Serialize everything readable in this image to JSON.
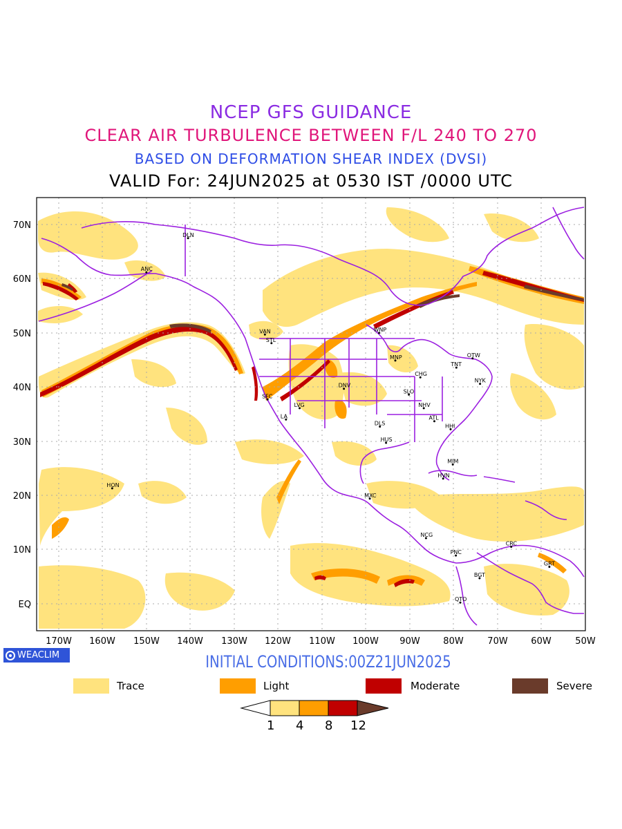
{
  "titles": {
    "line1": "NCEP GFS GUIDANCE",
    "line2": "CLEAR AIR TURBULENCE BETWEEN F/L 240 TO 270",
    "line3": "BASED ON DEFORMATION SHEAR INDEX (DVSI)",
    "line4": "VALID For: 24JUN2025 at 0530 IST /0000 UTC"
  },
  "map": {
    "lat_labels": [
      "70N",
      "60N",
      "50N",
      "40N",
      "30N",
      "20N",
      "10N",
      "EQ"
    ],
    "lon_labels": [
      "170W",
      "160W",
      "150W",
      "140W",
      "130W",
      "120W",
      "110W",
      "100W",
      "90W",
      "80W",
      "70W",
      "60W",
      "50W"
    ],
    "stations": [
      {
        "code": "DLN",
        "lon": -140.5,
        "lat": 67.5
      },
      {
        "code": "ANC",
        "lon": -150.0,
        "lat": 61.2
      },
      {
        "code": "VAN",
        "lon": -123.0,
        "lat": 49.7
      },
      {
        "code": "STL",
        "lon": -121.5,
        "lat": 48.1
      },
      {
        "code": "WNP",
        "lon": -97.0,
        "lat": 50.0
      },
      {
        "code": "OTW",
        "lon": -75.7,
        "lat": 45.3
      },
      {
        "code": "TNT",
        "lon": -79.4,
        "lat": 43.6
      },
      {
        "code": "MNP",
        "lon": -93.3,
        "lat": 44.9
      },
      {
        "code": "CHG",
        "lon": -87.6,
        "lat": 41.8
      },
      {
        "code": "NYK",
        "lon": -74.0,
        "lat": 40.6
      },
      {
        "code": "DNV",
        "lon": -105.0,
        "lat": 39.7
      },
      {
        "code": "SFC",
        "lon": -122.4,
        "lat": 37.7
      },
      {
        "code": "SLO",
        "lon": -90.2,
        "lat": 38.6
      },
      {
        "code": "LVG",
        "lon": -115.1,
        "lat": 36.1
      },
      {
        "code": "NHV",
        "lon": -86.8,
        "lat": 36.1
      },
      {
        "code": "LA",
        "lon": -118.2,
        "lat": 34.0
      },
      {
        "code": "ATL",
        "lon": -84.4,
        "lat": 33.7
      },
      {
        "code": "DLS",
        "lon": -96.8,
        "lat": 32.7
      },
      {
        "code": "HHI",
        "lon": -80.7,
        "lat": 32.2
      },
      {
        "code": "HUS",
        "lon": -95.4,
        "lat": 29.7
      },
      {
        "code": "MIM",
        "lon": -80.2,
        "lat": 25.7
      },
      {
        "code": "HON",
        "lon": -157.8,
        "lat": 21.3
      },
      {
        "code": "HVN",
        "lon": -82.4,
        "lat": 23.1
      },
      {
        "code": "MXC",
        "lon": -99.1,
        "lat": 19.4
      },
      {
        "code": "NCG",
        "lon": -86.3,
        "lat": 12.1
      },
      {
        "code": "CRC",
        "lon": -66.9,
        "lat": 10.5
      },
      {
        "code": "PNC",
        "lon": -79.5,
        "lat": 8.9
      },
      {
        "code": "GRT",
        "lon": -58.2,
        "lat": 6.8
      },
      {
        "code": "BGT",
        "lon": -74.1,
        "lat": 4.7
      },
      {
        "code": "QTO",
        "lon": -78.5,
        "lat": 0.2
      }
    ],
    "extent": {
      "lon": [
        -175,
        -50
      ],
      "lat": [
        -5,
        75
      ]
    }
  },
  "badge": {
    "label": "WEACLIM"
  },
  "initial_conditions": "INITIAL CONDITIONS:00Z21JUN2025",
  "legend": [
    {
      "label": "Trace",
      "color": "#ffe37e"
    },
    {
      "label": "Light",
      "color": "#ff9e00"
    },
    {
      "label": "Moderate",
      "color": "#c00000"
    },
    {
      "label": "Severe",
      "color": "#6a3b2b"
    }
  ],
  "colorbar": {
    "ticks": [
      "1",
      "4",
      "8",
      "12"
    ],
    "colors": [
      "#ffe37e",
      "#ff9e00",
      "#c00000",
      "#6a3b2b"
    ]
  }
}
